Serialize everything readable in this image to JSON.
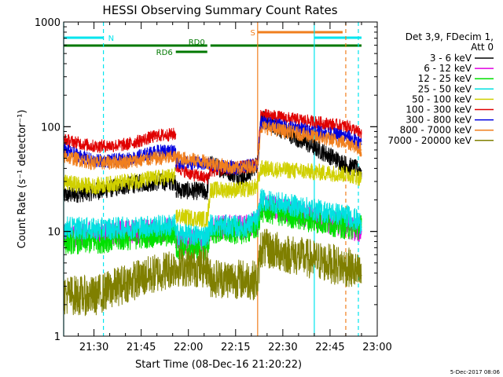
{
  "chart_data": {
    "type": "line",
    "title": "HESSI Observing Summary Count Rates",
    "xlabel": "Start Time (08-Dec-16 21:20:22)",
    "ylabel": "Count Rate (s⁻¹ detector⁻¹)",
    "y_scale": "log",
    "ylim": [
      1,
      1000
    ],
    "xlim": [
      "21:20:22",
      "23:00"
    ],
    "x_ticks": [
      "21:30",
      "21:45",
      "22:00",
      "22:15",
      "22:30",
      "22:45",
      "23:00"
    ],
    "y_ticks": [
      "1",
      "10",
      "100",
      "1000"
    ],
    "legend_title": [
      "Det 3,9, FDecim 1,",
      "Att 0"
    ],
    "legend_position": "right",
    "timestamp": "5-Dec-2017 08:06",
    "flags": [
      {
        "label": "N",
        "color": "#00e5ee",
        "segments": [
          [
            "21:20:22",
            "21:33"
          ],
          [
            "22:40",
            "22:55"
          ]
        ]
      },
      {
        "label": "S",
        "color": "#f07f1e",
        "segments": [
          [
            "22:22",
            "22:49"
          ]
        ]
      },
      {
        "label": "RD0",
        "color": "#007800",
        "segments": [
          [
            "21:20:22",
            "22:06"
          ],
          [
            "22:07",
            "22:55"
          ]
        ]
      },
      {
        "label": "RD6",
        "color": "#007800",
        "segments": [
          [
            "21:56",
            "22:06"
          ]
        ]
      }
    ],
    "markers": [
      {
        "time": "21:20:22",
        "color": "#00e5ee",
        "style": "solid"
      },
      {
        "time": "21:33",
        "color": "#00e5ee",
        "style": "dashed"
      },
      {
        "time": "22:22",
        "color": "#f07f1e",
        "style": "solid"
      },
      {
        "time": "22:40",
        "color": "#00e5ee",
        "style": "solid"
      },
      {
        "time": "22:50",
        "color": "#f07f1e",
        "style": "dashed"
      },
      {
        "time": "22:54",
        "color": "#00e5ee",
        "style": "dashed"
      }
    ],
    "series": [
      {
        "name": "3 - 6 keV",
        "color": "#000000",
        "points": [
          [
            "21:20:22",
            22
          ],
          [
            "21:30",
            24
          ],
          [
            "21:45",
            29
          ],
          [
            "21:56",
            30
          ],
          [
            "21:56",
            25
          ],
          [
            "22:06",
            24
          ],
          [
            "22:07",
            44
          ],
          [
            "22:18",
            32
          ],
          [
            "22:22",
            45
          ],
          [
            "22:23",
            120
          ],
          [
            "22:51",
            42
          ],
          [
            "22:55",
            38
          ]
        ]
      },
      {
        "name": "6 - 12 keV",
        "color": "#e000e0",
        "points": [
          [
            "21:20:22",
            9
          ],
          [
            "21:30",
            9.5
          ],
          [
            "21:45",
            10
          ],
          [
            "21:56",
            10.5
          ],
          [
            "21:56",
            8
          ],
          [
            "22:06",
            8
          ],
          [
            "22:07",
            11
          ],
          [
            "22:18",
            11
          ],
          [
            "22:22",
            12
          ],
          [
            "22:23",
            18
          ],
          [
            "22:51",
            11
          ],
          [
            "22:55",
            10
          ]
        ]
      },
      {
        "name": "12 - 25 keV",
        "color": "#00e000",
        "points": [
          [
            "21:20:22",
            8
          ],
          [
            "21:30",
            8
          ],
          [
            "21:45",
            9
          ],
          [
            "21:56",
            9.5
          ],
          [
            "21:56",
            7
          ],
          [
            "22:06",
            7
          ],
          [
            "22:07",
            10
          ],
          [
            "22:18",
            10
          ],
          [
            "22:22",
            11
          ],
          [
            "22:23",
            16
          ],
          [
            "22:51",
            11
          ],
          [
            "22:55",
            11
          ]
        ]
      },
      {
        "name": "25 - 50 keV",
        "color": "#00e0e0",
        "points": [
          [
            "21:20:22",
            11
          ],
          [
            "21:30",
            10.5
          ],
          [
            "21:45",
            11
          ],
          [
            "21:56",
            11.5
          ],
          [
            "21:56",
            9.5
          ],
          [
            "22:06",
            9
          ],
          [
            "22:07",
            11.5
          ],
          [
            "22:18",
            11
          ],
          [
            "22:22",
            13
          ],
          [
            "22:23",
            20
          ],
          [
            "22:51",
            14
          ],
          [
            "22:55",
            12
          ]
        ]
      },
      {
        "name": "50 - 100 keV",
        "color": "#d0d000",
        "points": [
          [
            "21:20:22",
            29
          ],
          [
            "21:30",
            27
          ],
          [
            "21:45",
            31
          ],
          [
            "21:56",
            34
          ],
          [
            "21:56",
            14
          ],
          [
            "22:06",
            13
          ],
          [
            "22:07",
            25
          ],
          [
            "22:18",
            25
          ],
          [
            "22:22",
            27
          ],
          [
            "22:23",
            40
          ],
          [
            "22:51",
            35
          ],
          [
            "22:55",
            32
          ]
        ]
      },
      {
        "name": "100 - 300 keV",
        "color": "#e00000",
        "points": [
          [
            "21:20:22",
            75
          ],
          [
            "21:30",
            65
          ],
          [
            "21:40",
            67
          ],
          [
            "21:50",
            82
          ],
          [
            "21:56",
            85
          ],
          [
            "21:56",
            42
          ],
          [
            "22:00",
            36
          ],
          [
            "22:06",
            32
          ],
          [
            "22:07",
            38
          ],
          [
            "22:15",
            40
          ],
          [
            "22:22",
            44
          ],
          [
            "22:23",
            130
          ],
          [
            "22:51",
            100
          ],
          [
            "22:55",
            85
          ]
        ]
      },
      {
        "name": "300 - 800 keV",
        "color": "#0000e0",
        "points": [
          [
            "21:20:22",
            60
          ],
          [
            "21:30",
            47
          ],
          [
            "21:40",
            48
          ],
          [
            "21:50",
            58
          ],
          [
            "21:56",
            60
          ],
          [
            "21:56",
            46
          ],
          [
            "22:06",
            44
          ],
          [
            "22:07",
            44
          ],
          [
            "22:15",
            40
          ],
          [
            "22:22",
            44
          ],
          [
            "22:23",
            110
          ],
          [
            "22:51",
            80
          ],
          [
            "22:55",
            68
          ]
        ]
      },
      {
        "name": "800 - 7000 keV",
        "color": "#f07f1e",
        "points": [
          [
            "21:20:22",
            52
          ],
          [
            "21:30",
            45
          ],
          [
            "21:40",
            46
          ],
          [
            "21:50",
            50
          ],
          [
            "21:56",
            51
          ],
          [
            "22:06",
            46
          ],
          [
            "22:15",
            40
          ],
          [
            "22:22",
            43
          ],
          [
            "22:23",
            100
          ],
          [
            "22:51",
            70
          ],
          [
            "22:55",
            60
          ]
        ]
      },
      {
        "name": "7000 - 20000 keV",
        "color": "#7f7f00",
        "points": [
          [
            "21:20:22",
            2.5
          ],
          [
            "21:30",
            2.4
          ],
          [
            "21:40",
            3.2
          ],
          [
            "21:50",
            4
          ],
          [
            "21:56",
            4.6
          ],
          [
            "22:06",
            4.5
          ],
          [
            "22:07",
            3.6
          ],
          [
            "22:18",
            3.5
          ],
          [
            "22:22",
            3.4
          ],
          [
            "22:23",
            7
          ],
          [
            "22:51",
            4.5
          ],
          [
            "22:55",
            3.8
          ]
        ]
      }
    ]
  }
}
